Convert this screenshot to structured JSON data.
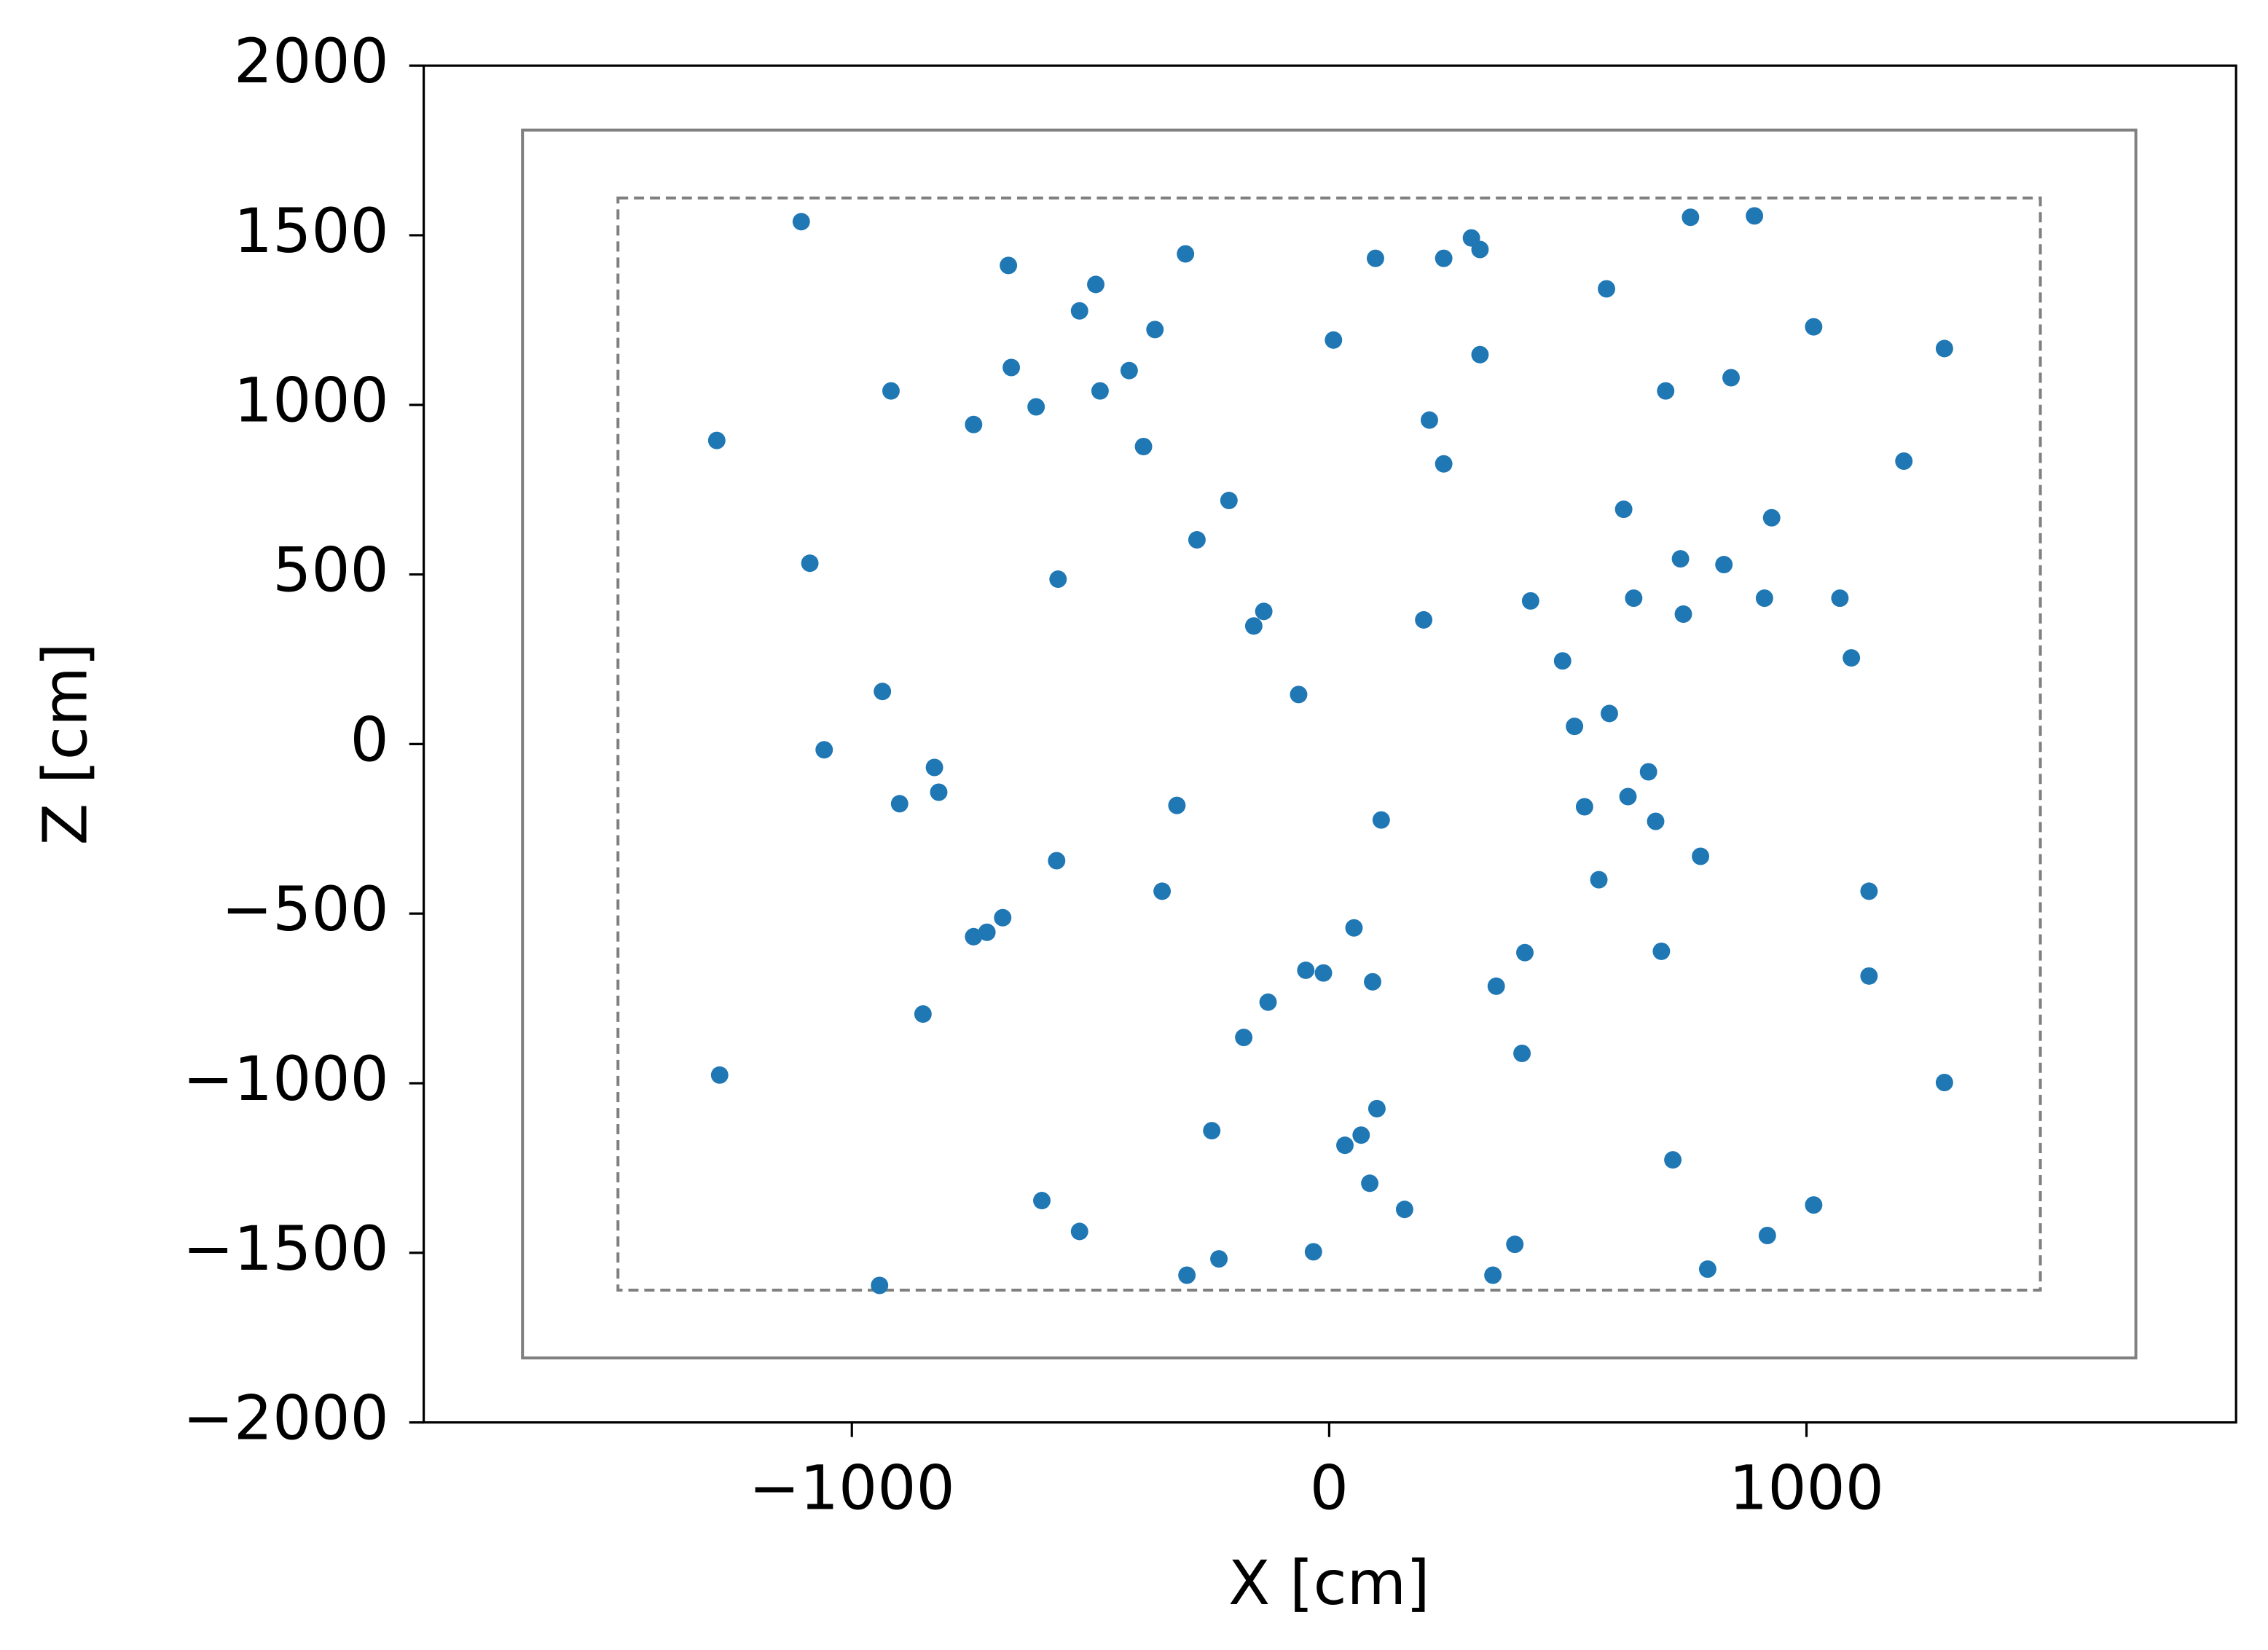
{
  "chart_data": {
    "type": "scatter",
    "xlabel": "X [cm]",
    "ylabel": "Z [cm]",
    "color": "#1f77b4",
    "x": [
      -1106,
      -1283,
      -1088,
      -936,
      -1058,
      -918,
      -745,
      -672,
      -666,
      -614,
      -523,
      -489,
      -480,
      -419,
      -365,
      -389,
      -301,
      -568,
      -210,
      -277,
      9,
      97,
      240,
      298,
      316,
      316,
      210,
      240,
      581,
      757,
      891,
      1015,
      1289,
      705,
      842,
      1204,
      617,
      927,
      736,
      827,
      742,
      638,
      422,
      912,
      1070,
      1094,
      198,
      -137,
      -158,
      -64,
      489,
      514,
      587,
      669,
      626,
      535,
      684,
      778,
      565,
      1131,
      696,
      1131,
      109,
      -319,
      -350,
      -571,
      -827,
      -818,
      -900,
      -684,
      -717,
      -745,
      -851,
      52,
      -49,
      -12,
      91,
      410,
      350,
      -128,
      -179,
      404,
      -1277,
      1289,
      100,
      -246,
      67,
      33,
      720,
      85,
      158,
      -602,
      1015,
      -523,
      918,
      389,
      -33,
      -231,
      -298,
      343,
      793,
      -942
    ],
    "values": [
      1540,
      895,
      533,
      155,
      -17,
      1041,
      942,
      1411,
      1110,
      994,
      1277,
      1355,
      1041,
      1101,
      1222,
      877,
      1445,
      486,
      718,
      602,
      1191,
      1432,
      1432,
      1492,
      1458,
      1148,
      955,
      826,
      1342,
      1553,
      1557,
      1230,
      1166,
      1041,
      1080,
      834,
      692,
      667,
      546,
      529,
      383,
      430,
      422,
      430,
      430,
      254,
      366,
      391,
      348,
      146,
      245,
      52,
      90,
      -82,
      -155,
      -185,
      -228,
      -331,
      -400,
      -434,
      -611,
      -684,
      -224,
      -181,
      -434,
      -344,
      -69,
      -142,
      -176,
      -512,
      -555,
      -568,
      -796,
      -542,
      -667,
      -675,
      -701,
      -615,
      -714,
      -761,
      -865,
      -912,
      -976,
      -998,
      -1075,
      -1140,
      -1153,
      -1183,
      -1226,
      -1295,
      -1372,
      -1346,
      -1359,
      -1437,
      -1449,
      -1475,
      -1497,
      -1518,
      -1566,
      -1566,
      -1548,
      -1596
    ],
    "xlim": [
      -1897,
      1900
    ],
    "ylim": [
      -2000,
      2000
    ],
    "xticks": [
      {
        "value": -1000,
        "label": "−1000"
      },
      0,
      1000
    ],
    "yticks": [
      2000,
      1500,
      1000,
      500,
      0,
      {
        "value": -500,
        "label": "−500"
      },
      {
        "value": -1000,
        "label": "−1000"
      },
      {
        "value": -1500,
        "label": "−1500"
      },
      {
        "value": -2000,
        "label": "−2000"
      }
    ],
    "rectangles": [
      {
        "x": [
          -1690,
          1690
        ],
        "y": [
          -1810,
          1810
        ],
        "linestyle": "solid",
        "color": "#808080"
      },
      {
        "x": [
          -1490,
          1490
        ],
        "y": [
          -1610,
          1610
        ],
        "linestyle": "dashed",
        "color": "#808080"
      }
    ]
  }
}
